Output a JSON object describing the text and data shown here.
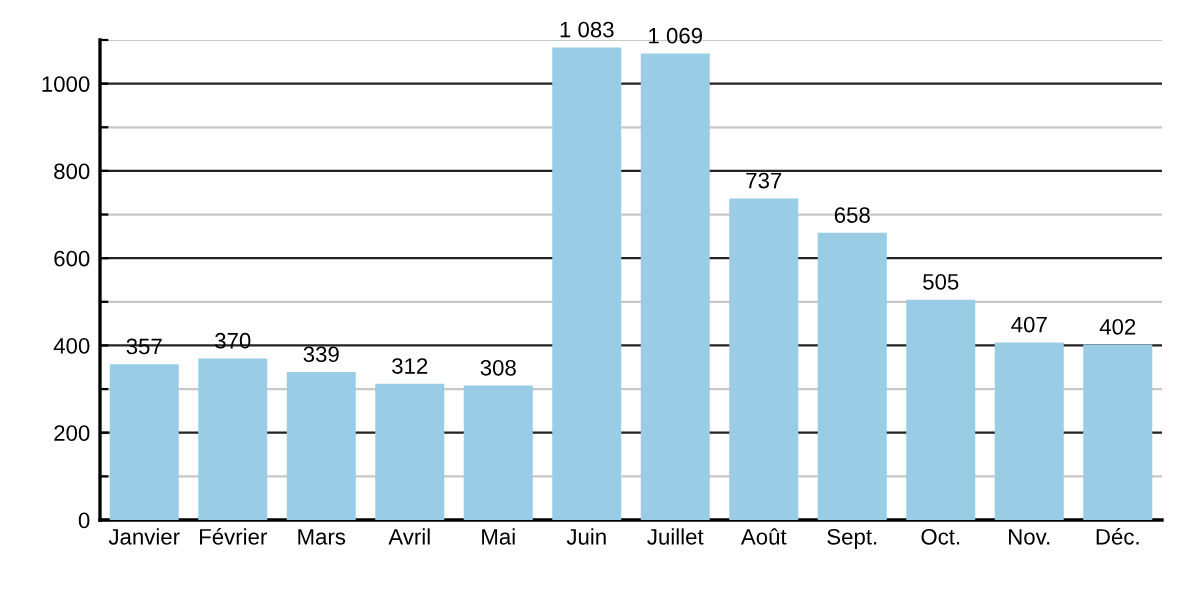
{
  "chart_data": {
    "type": "bar",
    "categories": [
      "Janvier",
      "Février",
      "Mars",
      "Avril",
      "Mai",
      "Juin",
      "Juillet",
      "Août",
      "Sept.",
      "Oct.",
      "Nov.",
      "Déc."
    ],
    "values": [
      357,
      370,
      339,
      312,
      308,
      1083,
      1069,
      737,
      658,
      505,
      407,
      402
    ],
    "value_labels": [
      "357",
      "370",
      "339",
      "312",
      "308",
      "1 083",
      "1 069",
      "737",
      "658",
      "505",
      "407",
      "402"
    ],
    "color": "#9acce6",
    "ylim": [
      0,
      1100
    ],
    "yticks": [
      0,
      {
        "value": 100,
        "label": null
      },
      200,
      {
        "value": 300,
        "label": null
      },
      400,
      {
        "value": 500,
        "label": null
      },
      600,
      {
        "value": 700,
        "label": null
      },
      800,
      {
        "value": 900,
        "label": null
      },
      1000,
      {
        "value": 1100,
        "label": null
      }
    ],
    "grid": "y"
  }
}
